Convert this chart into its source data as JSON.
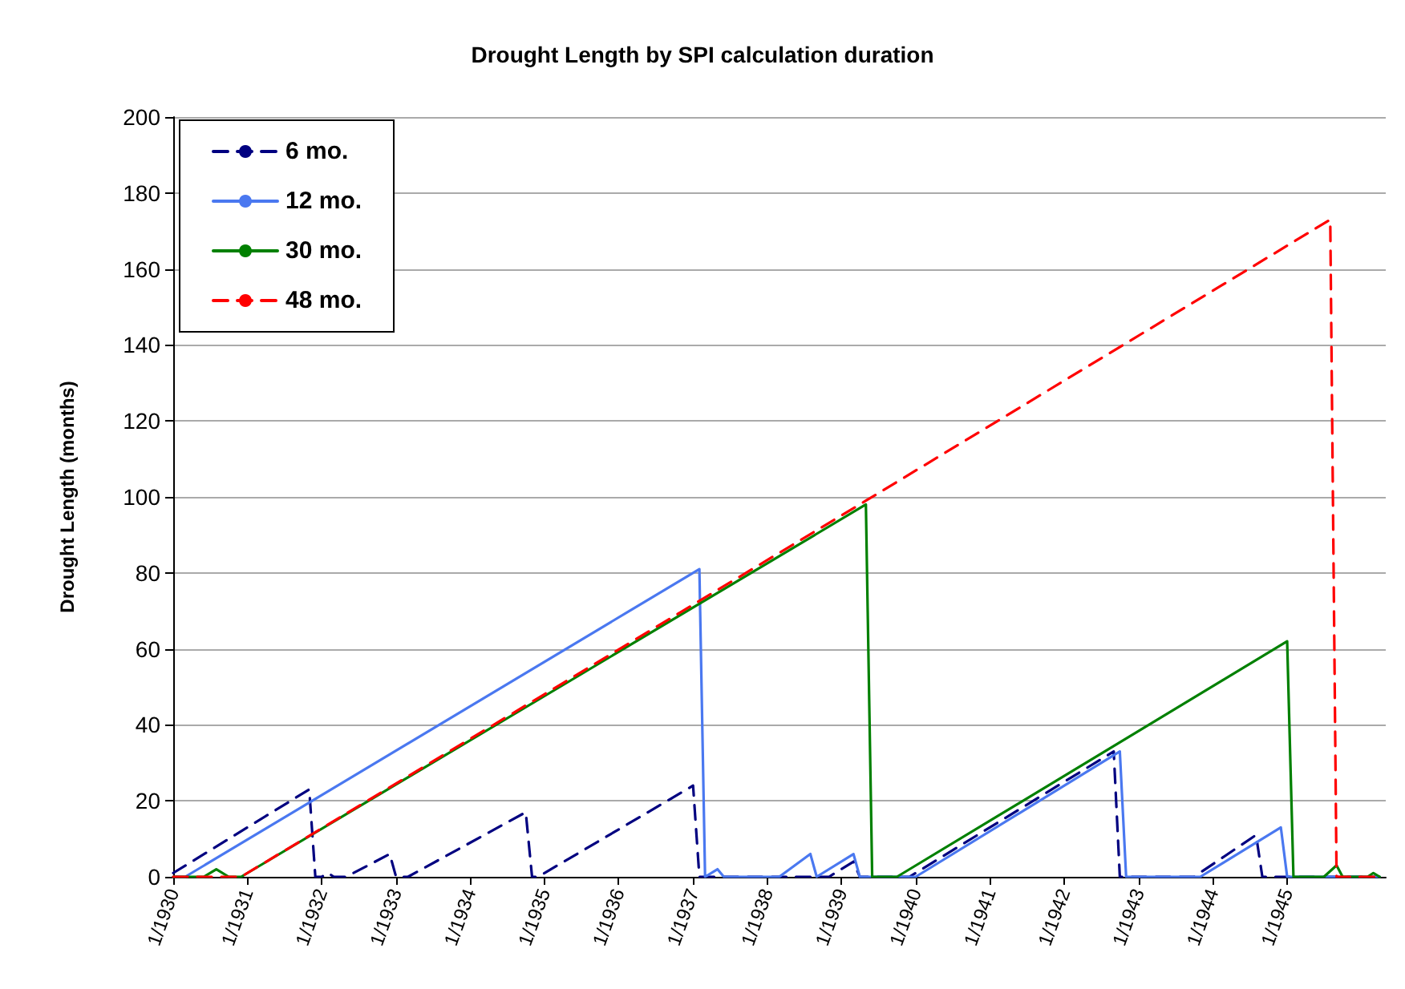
{
  "chart_data": {
    "type": "line",
    "title": "Drought Length by SPI calculation duration",
    "ylabel": "Drought Length (months)",
    "xlim": [
      "1930-01",
      "1946-05"
    ],
    "xticks": [
      {
        "value": "1930-01",
        "label": "1/1930"
      },
      {
        "value": "1931-01",
        "label": "1/1931"
      },
      {
        "value": "1932-01",
        "label": "1/1932"
      },
      {
        "value": "1933-01",
        "label": "1/1933"
      },
      {
        "value": "1934-01",
        "label": "1/1934"
      },
      {
        "value": "1935-01",
        "label": "1/1935"
      },
      {
        "value": "1936-01",
        "label": "1/1936"
      },
      {
        "value": "1937-01",
        "label": "1/1937"
      },
      {
        "value": "1938-01",
        "label": "1/1938"
      },
      {
        "value": "1939-01",
        "label": "1/1939"
      },
      {
        "value": "1940-01",
        "label": "1/1940"
      },
      {
        "value": "1941-01",
        "label": "1/1941"
      },
      {
        "value": "1942-01",
        "label": "1/1942"
      },
      {
        "value": "1943-01",
        "label": "1/1943"
      },
      {
        "value": "1944-01",
        "label": "1/1944"
      },
      {
        "value": "1945-01",
        "label": "1/1945"
      }
    ],
    "ylim": [
      0,
      200
    ],
    "yticks": [
      0,
      20,
      40,
      60,
      80,
      100,
      120,
      140,
      160,
      180,
      200
    ],
    "grid": "y",
    "legend": "top left",
    "marker": "none",
    "series": [
      {
        "name": "6 mo.",
        "color": "#000080",
        "line_style": "dashed",
        "x": [
          "1930-01",
          "1931-11",
          "1931-12",
          "1932-01",
          "1932-02",
          "1932-03",
          "1932-05",
          "1932-12",
          "1933-01",
          "1933-03",
          "1934-10",
          "1934-11",
          "1934-12",
          "1937-01",
          "1937-02",
          "1938-11",
          "1939-03",
          "1939-04",
          "1939-12",
          "1942-09",
          "1942-10",
          "1943-10",
          "1944-08",
          "1944-09",
          "1946-04"
        ],
        "values": [
          1,
          23,
          0,
          0,
          1,
          0,
          0,
          6,
          0,
          0,
          17,
          0,
          0,
          24,
          0,
          0,
          4,
          0,
          0,
          33,
          0,
          0,
          11,
          0,
          0
        ]
      },
      {
        "name": "12 mo.",
        "color": "#4a78f0",
        "line_style": "solid",
        "x": [
          "1930-01",
          "1930-03",
          "1937-02",
          "1937-03",
          "1937-05",
          "1937-06",
          "1938-03",
          "1938-08",
          "1938-09",
          "1939-03",
          "1939-04",
          "1940-01",
          "1942-10",
          "1942-11",
          "1943-11",
          "1944-12",
          "1945-01",
          "1946-04"
        ],
        "values": [
          0,
          0,
          81,
          0,
          2,
          0,
          0,
          6,
          0,
          6,
          0,
          0,
          33,
          0,
          0,
          13,
          0,
          0
        ]
      },
      {
        "name": "30 mo.",
        "color": "#008000",
        "line_style": "solid",
        "x": [
          "1930-01",
          "1930-06",
          "1930-08",
          "1930-10",
          "1930-12",
          "1939-05",
          "1939-06",
          "1939-10",
          "1945-01",
          "1945-02",
          "1945-07",
          "1945-09",
          "1945-10",
          "1946-02",
          "1946-03",
          "1946-04"
        ],
        "values": [
          0,
          0,
          2,
          0,
          0,
          98,
          0,
          0,
          62,
          0,
          0,
          3,
          0,
          0,
          1,
          0
        ]
      },
      {
        "name": "48 mo.",
        "color": "#ff0000",
        "line_style": "dashed",
        "x": [
          "1930-01",
          "1930-12",
          "1939-05",
          "1945-08",
          "1945-09",
          "1946-04"
        ],
        "values": [
          0,
          0,
          99,
          173,
          0,
          0
        ]
      }
    ]
  }
}
